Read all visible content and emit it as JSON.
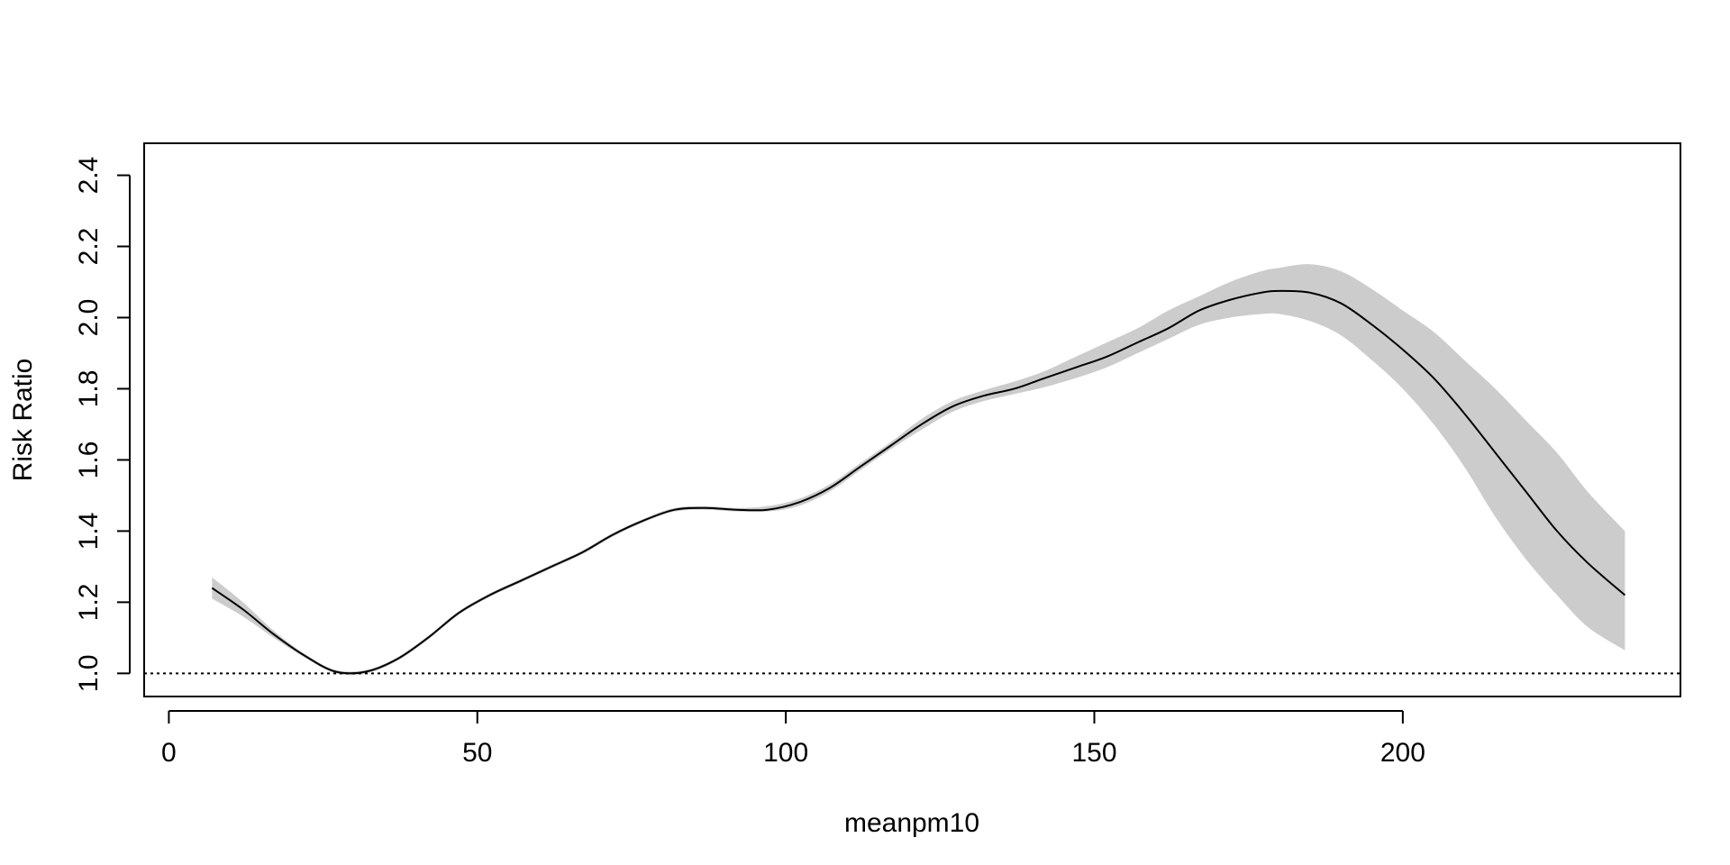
{
  "chart_data": {
    "type": "line",
    "title": "",
    "xlabel": "meanpm10",
    "ylabel": "Risk Ratio",
    "xlim": [
      -4,
      245
    ],
    "ylim": [
      0.935,
      2.49
    ],
    "xticks": [
      0,
      50,
      100,
      150,
      200
    ],
    "yticks": [
      1.0,
      1.2,
      1.4,
      1.6,
      1.8,
      2.0,
      2.2,
      2.4
    ],
    "xtick_labels": [
      "0",
      "50",
      "100",
      "150",
      "200"
    ],
    "ytick_labels": [
      "1.0",
      "1.2",
      "1.4",
      "1.6",
      "1.8",
      "2.0",
      "2.2",
      "2.4"
    ],
    "reference_line": {
      "y": 1.0,
      "style": "dotted"
    },
    "grid": false,
    "colors": {
      "line": "#000000",
      "band": "#cccccc"
    },
    "series": [
      {
        "x": [
          7,
          12,
          17,
          22,
          27,
          32,
          37,
          42,
          47,
          52,
          57,
          62,
          67,
          72,
          77,
          82,
          87,
          92,
          97,
          102,
          107,
          112,
          117,
          122,
          127,
          132,
          137,
          142,
          147,
          152,
          157,
          162,
          167,
          172,
          177,
          180,
          185,
          190,
          195,
          200,
          205,
          210,
          215,
          220,
          225,
          230,
          236
        ],
        "y": [
          1.24,
          1.18,
          1.11,
          1.05,
          1.005,
          1.005,
          1.04,
          1.1,
          1.17,
          1.22,
          1.26,
          1.3,
          1.34,
          1.39,
          1.43,
          1.46,
          1.465,
          1.46,
          1.46,
          1.48,
          1.52,
          1.58,
          1.64,
          1.7,
          1.75,
          1.78,
          1.8,
          1.83,
          1.86,
          1.89,
          1.93,
          1.97,
          2.02,
          2.05,
          2.07,
          2.075,
          2.07,
          2.04,
          1.98,
          1.91,
          1.83,
          1.73,
          1.62,
          1.51,
          1.4,
          1.31,
          1.22
        ],
        "lower": [
          1.21,
          1.16,
          1.1,
          1.045,
          1.0,
          1.0,
          1.035,
          1.095,
          1.165,
          1.215,
          1.255,
          1.295,
          1.335,
          1.385,
          1.425,
          1.455,
          1.46,
          1.455,
          1.455,
          1.47,
          1.51,
          1.57,
          1.63,
          1.685,
          1.735,
          1.765,
          1.785,
          1.805,
          1.83,
          1.86,
          1.9,
          1.94,
          1.98,
          2.0,
          2.01,
          2.01,
          1.99,
          1.95,
          1.88,
          1.8,
          1.7,
          1.58,
          1.44,
          1.32,
          1.22,
          1.13,
          1.065
        ],
        "upper": [
          1.27,
          1.2,
          1.12,
          1.055,
          1.01,
          1.01,
          1.045,
          1.105,
          1.175,
          1.225,
          1.265,
          1.305,
          1.345,
          1.395,
          1.435,
          1.465,
          1.47,
          1.465,
          1.47,
          1.49,
          1.53,
          1.59,
          1.65,
          1.715,
          1.765,
          1.795,
          1.82,
          1.85,
          1.89,
          1.93,
          1.97,
          2.02,
          2.06,
          2.1,
          2.13,
          2.14,
          2.15,
          2.13,
          2.08,
          2.02,
          1.96,
          1.88,
          1.8,
          1.71,
          1.62,
          1.51,
          1.4
        ]
      }
    ]
  }
}
